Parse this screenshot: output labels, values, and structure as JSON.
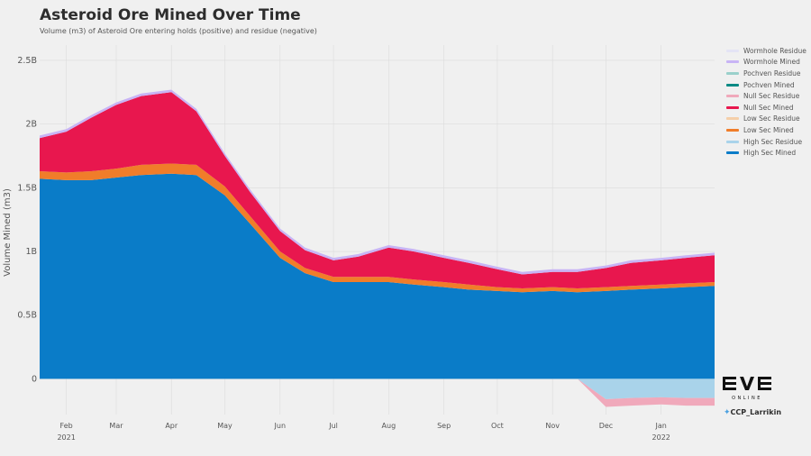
{
  "chart_data": {
    "type": "area",
    "title": "Asteroid Ore Mined Over Time",
    "subtitle": "Volume (m3) of Asteroid Ore entering holds (positive) and residue (negative)",
    "ylabel": "Volume Mined (m3)",
    "xlabel": "",
    "ylim": [
      -280000000,
      2620000000
    ],
    "yticks": [
      0,
      500000000,
      1000000000,
      1500000000,
      2000000000,
      2500000000
    ],
    "ytick_labels": [
      "0",
      "0.5B",
      "1B",
      "1.5B",
      "2B",
      "2.5B"
    ],
    "x_range": [
      "2021-01-17",
      "2022-01-31"
    ],
    "x_ticks": [
      {
        "date": "2021-02-01",
        "label": "Feb",
        "year": "2021"
      },
      {
        "date": "2021-03-01",
        "label": "Mar",
        "year": ""
      },
      {
        "date": "2021-04-01",
        "label": "Apr",
        "year": ""
      },
      {
        "date": "2021-05-01",
        "label": "May",
        "year": ""
      },
      {
        "date": "2021-06-01",
        "label": "Jun",
        "year": ""
      },
      {
        "date": "2021-07-01",
        "label": "Jul",
        "year": ""
      },
      {
        "date": "2021-08-01",
        "label": "Aug",
        "year": ""
      },
      {
        "date": "2021-09-01",
        "label": "Sep",
        "year": ""
      },
      {
        "date": "2021-10-01",
        "label": "Oct",
        "year": ""
      },
      {
        "date": "2021-11-01",
        "label": "Nov",
        "year": ""
      },
      {
        "date": "2021-12-01",
        "label": "Dec",
        "year": ""
      },
      {
        "date": "2022-01-01",
        "label": "Jan",
        "year": "2022"
      }
    ],
    "dates": [
      "2021-01-17",
      "2021-02-01",
      "2021-02-15",
      "2021-03-01",
      "2021-03-15",
      "2021-04-01",
      "2021-04-15",
      "2021-05-01",
      "2021-05-15",
      "2021-06-01",
      "2021-06-15",
      "2021-07-01",
      "2021-07-15",
      "2021-08-01",
      "2021-08-15",
      "2021-09-01",
      "2021-09-15",
      "2021-10-01",
      "2021-10-15",
      "2021-11-01",
      "2021-11-15",
      "2021-12-01",
      "2021-12-15",
      "2022-01-01",
      "2022-01-15",
      "2022-01-31"
    ],
    "series": [
      {
        "name": "High Sec Mined",
        "color": "#0a7cc8",
        "values": [
          1570000000,
          1560000000,
          1560000000,
          1580000000,
          1600000000,
          1610000000,
          1600000000,
          1440000000,
          1220000000,
          950000000,
          830000000,
          760000000,
          760000000,
          760000000,
          740000000,
          720000000,
          700000000,
          690000000,
          680000000,
          690000000,
          680000000,
          690000000,
          700000000,
          710000000,
          720000000,
          730000000
        ]
      },
      {
        "name": "Low Sec Mined",
        "color": "#f07d2a",
        "values": [
          60000000,
          60000000,
          70000000,
          70000000,
          80000000,
          80000000,
          80000000,
          70000000,
          60000000,
          50000000,
          40000000,
          40000000,
          40000000,
          40000000,
          40000000,
          40000000,
          40000000,
          30000000,
          30000000,
          30000000,
          30000000,
          30000000,
          30000000,
          30000000,
          30000000,
          30000000
        ]
      },
      {
        "name": "Null Sec Mined",
        "color": "#e8174e",
        "values": [
          260000000,
          320000000,
          420000000,
          500000000,
          540000000,
          560000000,
          420000000,
          240000000,
          190000000,
          160000000,
          140000000,
          130000000,
          160000000,
          230000000,
          220000000,
          190000000,
          170000000,
          140000000,
          110000000,
          120000000,
          130000000,
          150000000,
          180000000,
          190000000,
          200000000,
          210000000
        ]
      },
      {
        "name": "Pochven Mined",
        "color": "#0a8a84",
        "values": [
          0,
          0,
          0,
          0,
          0,
          0,
          0,
          0,
          0,
          0,
          0,
          0,
          0,
          0,
          0,
          0,
          0,
          0,
          0,
          0,
          0,
          0,
          0,
          0,
          0,
          0
        ]
      },
      {
        "name": "Wormhole Mined",
        "color": "#c8b4f5",
        "values": [
          20000000,
          20000000,
          20000000,
          20000000,
          20000000,
          20000000,
          20000000,
          20000000,
          20000000,
          20000000,
          20000000,
          20000000,
          20000000,
          20000000,
          20000000,
          20000000,
          20000000,
          20000000,
          20000000,
          20000000,
          20000000,
          20000000,
          20000000,
          20000000,
          20000000,
          20000000
        ]
      },
      {
        "name": "High Sec Residue",
        "color": "#a9d3ea",
        "values": [
          0,
          0,
          0,
          0,
          0,
          0,
          0,
          0,
          0,
          0,
          0,
          0,
          0,
          0,
          0,
          0,
          0,
          0,
          0,
          0,
          0,
          -160000000,
          -150000000,
          -145000000,
          -150000000,
          -150000000
        ]
      },
      {
        "name": "Low Sec Residue",
        "color": "#f5cfa9",
        "values": [
          0,
          0,
          0,
          0,
          0,
          0,
          0,
          0,
          0,
          0,
          0,
          0,
          0,
          0,
          0,
          0,
          0,
          0,
          0,
          0,
          0,
          0,
          0,
          0,
          0,
          0
        ]
      },
      {
        "name": "Null Sec Residue",
        "color": "#f0a9bb",
        "values": [
          0,
          0,
          0,
          0,
          0,
          0,
          0,
          0,
          0,
          0,
          0,
          0,
          0,
          0,
          0,
          0,
          0,
          0,
          0,
          0,
          0,
          -60000000,
          -60000000,
          -55000000,
          -60000000,
          -60000000
        ]
      },
      {
        "name": "Pochven Residue",
        "color": "#9ad0cb",
        "values": [
          0,
          0,
          0,
          0,
          0,
          0,
          0,
          0,
          0,
          0,
          0,
          0,
          0,
          0,
          0,
          0,
          0,
          0,
          0,
          0,
          0,
          0,
          0,
          0,
          0,
          0
        ]
      },
      {
        "name": "Wormhole Residue",
        "color": "#e4e4f5",
        "values": [
          0,
          0,
          0,
          0,
          0,
          0,
          0,
          0,
          0,
          0,
          0,
          0,
          0,
          0,
          0,
          0,
          0,
          0,
          0,
          0,
          0,
          0,
          0,
          0,
          0,
          0
        ]
      }
    ],
    "legend": [
      "Wormhole Residue",
      "Wormhole Mined",
      "Pochven Residue",
      "Pochven Mined",
      "Null Sec Residue",
      "Null Sec Mined",
      "Low Sec Residue",
      "Low Sec Mined",
      "High Sec Residue",
      "High Sec Mined"
    ],
    "legend_position": "right",
    "grid": true
  },
  "branding": {
    "logo_text": "EVE",
    "logo_subtext": "ONLINE",
    "credit": "CCP_Larrikin"
  }
}
